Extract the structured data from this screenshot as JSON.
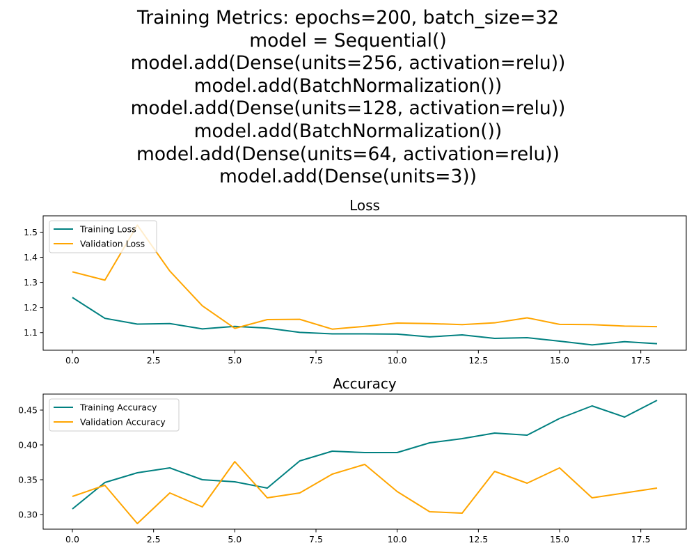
{
  "suptitle_lines": [
    "Training Metrics: epochs=200, batch_size=32",
    "model = Sequential()",
    "model.add(Dense(units=256, activation=relu))",
    "model.add(BatchNormalization())",
    "model.add(Dense(units=128, activation=relu))",
    "model.add(BatchNormalization())",
    "model.add(Dense(units=64, activation=relu))",
    "model.add(Dense(units=3))"
  ],
  "colors": {
    "training": "#008080",
    "validation": "#FFA500"
  },
  "chart_data": [
    {
      "type": "line",
      "title": "Loss",
      "xlabel": "",
      "ylabel": "",
      "xlim": [
        -0.9,
        18.9
      ],
      "ylim": [
        1.03,
        1.565
      ],
      "xticks": [
        0.0,
        2.5,
        5.0,
        7.5,
        10.0,
        12.5,
        15.0,
        17.5
      ],
      "xtick_labels": [
        "0.0",
        "2.5",
        "5.0",
        "7.5",
        "10.0",
        "12.5",
        "15.0",
        "17.5"
      ],
      "yticks": [
        1.1,
        1.2,
        1.3,
        1.4,
        1.5
      ],
      "ytick_labels": [
        "1.1",
        "1.2",
        "1.3",
        "1.4",
        "1.5"
      ],
      "grid": false,
      "legend": "top-left",
      "x": [
        0,
        1,
        2,
        3,
        4,
        5,
        6,
        7,
        8,
        9,
        10,
        11,
        12,
        13,
        14,
        15,
        16,
        17,
        18
      ],
      "series": [
        {
          "name": "Training Loss",
          "color": "#008080",
          "values": [
            1.24,
            1.157,
            1.134,
            1.136,
            1.115,
            1.125,
            1.118,
            1.101,
            1.095,
            1.095,
            1.094,
            1.083,
            1.091,
            1.077,
            1.08,
            1.066,
            1.051,
            1.064,
            1.056
          ]
        },
        {
          "name": "Validation Loss",
          "color": "#FFA500",
          "values": [
            1.342,
            1.309,
            1.528,
            1.345,
            1.207,
            1.117,
            1.152,
            1.153,
            1.114,
            1.125,
            1.138,
            1.136,
            1.132,
            1.139,
            1.159,
            1.133,
            1.132,
            1.126,
            1.124
          ]
        }
      ]
    },
    {
      "type": "line",
      "title": "Accuracy",
      "xlabel": "",
      "ylabel": "",
      "xlim": [
        -0.9,
        18.9
      ],
      "ylim": [
        0.279,
        0.473
      ],
      "xticks": [
        0.0,
        2.5,
        5.0,
        7.5,
        10.0,
        12.5,
        15.0,
        17.5
      ],
      "xtick_labels": [
        "0.0",
        "2.5",
        "5.0",
        "7.5",
        "10.0",
        "12.5",
        "15.0",
        "17.5"
      ],
      "yticks": [
        0.3,
        0.35,
        0.4,
        0.45
      ],
      "ytick_labels": [
        "0.30",
        "0.35",
        "0.40",
        "0.45"
      ],
      "grid": false,
      "legend": "top-left",
      "x": [
        0,
        1,
        2,
        3,
        4,
        5,
        6,
        7,
        8,
        9,
        10,
        11,
        12,
        13,
        14,
        15,
        16,
        17,
        18
      ],
      "series": [
        {
          "name": "Training Accuracy",
          "color": "#008080",
          "values": [
            0.308,
            0.346,
            0.36,
            0.367,
            0.35,
            0.347,
            0.338,
            0.377,
            0.391,
            0.389,
            0.389,
            0.403,
            0.409,
            0.417,
            0.414,
            0.438,
            0.456,
            0.44,
            0.464
          ]
        },
        {
          "name": "Validation Accuracy",
          "color": "#FFA500",
          "values": [
            0.326,
            0.342,
            0.287,
            0.331,
            0.311,
            0.376,
            0.324,
            0.331,
            0.358,
            0.372,
            0.333,
            0.304,
            0.302,
            0.362,
            0.345,
            0.367,
            0.324,
            0.331,
            0.338
          ]
        }
      ]
    }
  ]
}
